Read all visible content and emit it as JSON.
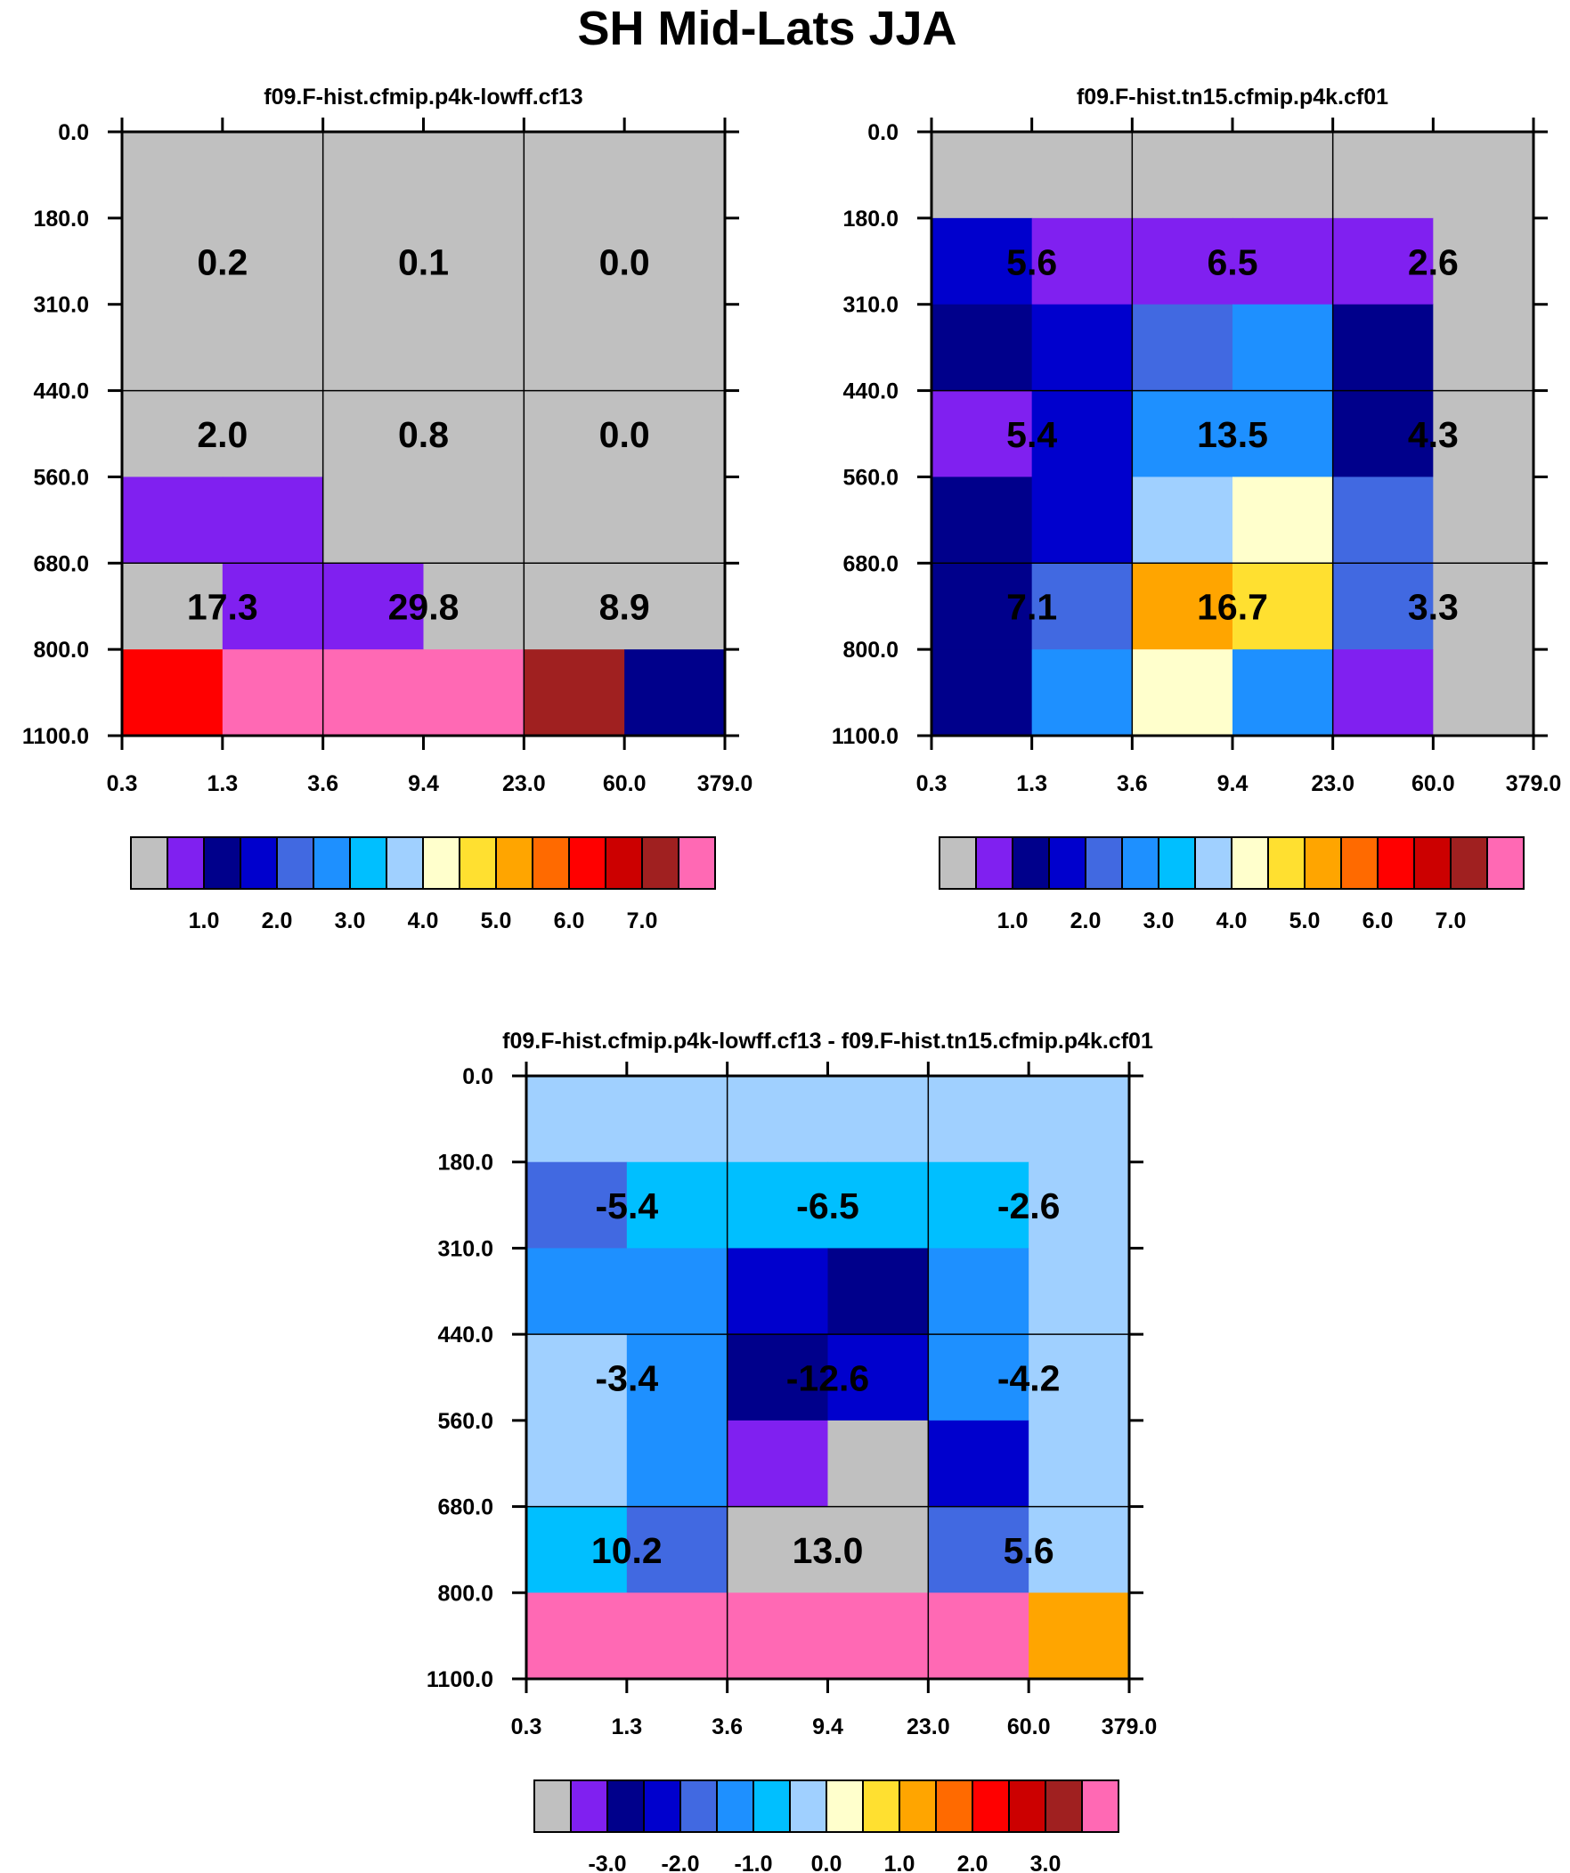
{
  "figure_title": "SH Mid-Lats JJA",
  "palette": {
    "colors": [
      "#c0c0c0",
      "#8020f0",
      "#00008b",
      "#0000cd",
      "#4169e1",
      "#1e90ff",
      "#00bfff",
      "#a0d0ff",
      "#ffffcc",
      "#ffe030",
      "#ffa500",
      "#ff6a00",
      "#ff0000",
      "#cc0000",
      "#a02020",
      "#ff69b4"
    ]
  },
  "chart_data": [
    {
      "type": "heatmap",
      "title": "f09.F-hist.cfmip.p4k-lowff.cf13",
      "x_ticks": [
        "0.3",
        "1.3",
        "3.6",
        "9.4",
        "23.0",
        "60.0",
        "379.0"
      ],
      "y_ticks": [
        "0.0",
        "180.0",
        "310.0",
        "440.0",
        "560.0",
        "680.0",
        "800.0",
        "1100.0"
      ],
      "cell_color_index": [
        [
          0,
          0,
          0,
          0,
          0,
          0
        ],
        [
          0,
          0,
          0,
          0,
          0,
          0
        ],
        [
          0,
          0,
          0,
          0,
          0,
          0
        ],
        [
          0,
          0,
          0,
          0,
          0,
          0
        ],
        [
          1,
          1,
          0,
          0,
          0,
          0
        ],
        [
          0,
          1,
          1,
          0,
          0,
          0
        ],
        [
          12,
          15,
          15,
          15,
          14,
          2
        ]
      ],
      "group_labels": [
        [
          "0.2",
          "0.1",
          "0.0"
        ],
        [
          "2.0",
          "0.8",
          "0.0"
        ],
        [
          "17.3",
          "29.8",
          "8.9"
        ]
      ],
      "colorbar_labels": [
        "1.0",
        "2.0",
        "3.0",
        "4.0",
        "5.0",
        "6.0",
        "7.0"
      ]
    },
    {
      "type": "heatmap",
      "title": "f09.F-hist.tn15.cfmip.p4k.cf01",
      "x_ticks": [
        "0.3",
        "1.3",
        "3.6",
        "9.4",
        "23.0",
        "60.0",
        "379.0"
      ],
      "y_ticks": [
        "0.0",
        "180.0",
        "310.0",
        "440.0",
        "560.0",
        "680.0",
        "800.0",
        "1100.0"
      ],
      "cell_color_index": [
        [
          0,
          0,
          0,
          0,
          0,
          0
        ],
        [
          3,
          1,
          1,
          1,
          1,
          0
        ],
        [
          2,
          3,
          4,
          5,
          2,
          0
        ],
        [
          1,
          3,
          5,
          5,
          2,
          0
        ],
        [
          2,
          3,
          7,
          8,
          4,
          0
        ],
        [
          2,
          4,
          10,
          9,
          4,
          0
        ],
        [
          2,
          5,
          8,
          5,
          1,
          0
        ]
      ],
      "group_labels": [
        [
          "5.6",
          "6.5",
          "2.6"
        ],
        [
          "5.4",
          "13.5",
          "4.3"
        ],
        [
          "7.1",
          "16.7",
          "3.3"
        ]
      ],
      "colorbar_labels": [
        "1.0",
        "2.0",
        "3.0",
        "4.0",
        "5.0",
        "6.0",
        "7.0"
      ]
    },
    {
      "type": "heatmap",
      "title": "f09.F-hist.cfmip.p4k-lowff.cf13 - f09.F-hist.tn15.cfmip.p4k.cf01",
      "x_ticks": [
        "0.3",
        "1.3",
        "3.6",
        "9.4",
        "23.0",
        "60.0",
        "379.0"
      ],
      "y_ticks": [
        "0.0",
        "180.0",
        "310.0",
        "440.0",
        "560.0",
        "680.0",
        "800.0",
        "1100.0"
      ],
      "cell_color_index": [
        [
          7,
          7,
          7,
          7,
          7,
          7
        ],
        [
          4,
          6,
          6,
          6,
          6,
          7
        ],
        [
          5,
          5,
          3,
          2,
          5,
          7
        ],
        [
          7,
          5,
          2,
          3,
          5,
          7
        ],
        [
          7,
          5,
          1,
          0,
          3,
          7
        ],
        [
          6,
          4,
          0,
          0,
          4,
          7
        ],
        [
          15,
          15,
          15,
          15,
          15,
          10
        ]
      ],
      "group_labels": [
        [
          "-5.4",
          "-6.5",
          "-2.6"
        ],
        [
          "-3.4",
          "-12.6",
          "-4.2"
        ],
        [
          "10.2",
          "13.0",
          "5.6"
        ]
      ],
      "colorbar_labels": [
        "-3.0",
        "-2.0",
        "-1.0",
        "0.0",
        "1.0",
        "2.0",
        "3.0"
      ]
    }
  ]
}
